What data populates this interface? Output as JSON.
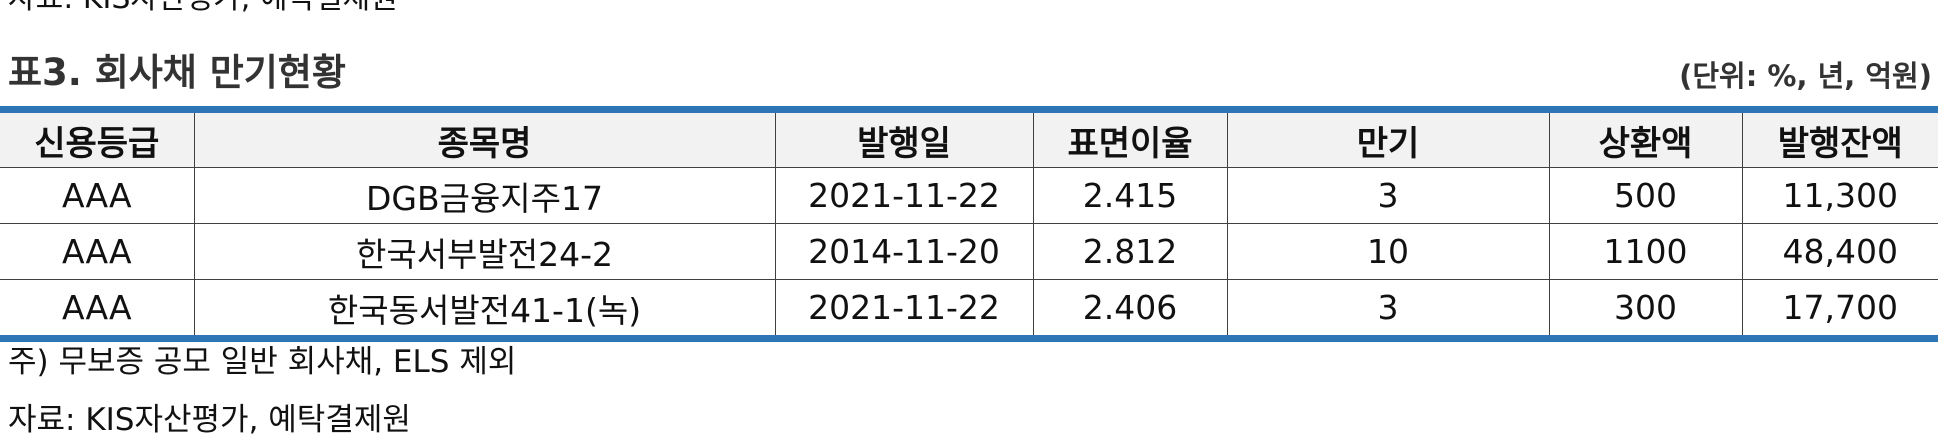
{
  "top_source_cut": "자료: KIS자산평가, 예탁결제원",
  "title": "표3. 회사채 만기현황",
  "unit": "(단위: %, 년, 억원)",
  "table": {
    "headers": [
      "신용등급",
      "종목명",
      "발행일",
      "표면이율",
      "만기",
      "상환액",
      "발행잔액"
    ],
    "rows": [
      [
        "AAA",
        "DGB금융지주17",
        "2021-11-22",
        "2.415",
        "3",
        "500",
        "11,300"
      ],
      [
        "AAA",
        "한국서부발전24-2",
        "2014-11-20",
        "2.812",
        "10",
        "1100",
        "48,400"
      ],
      [
        "AAA",
        "한국동서발전41-1(녹)",
        "2021-11-22",
        "2.406",
        "3",
        "300",
        "17,700"
      ]
    ]
  },
  "notes": {
    "footnote": "주) 무보증 공모 일반 회사채, ELS 제외",
    "source": "자료: KIS자산평가, 예탁결제원"
  },
  "colors": {
    "rule": "#2e75b6",
    "header_bg": "#f2f2f2",
    "title_text": "#333333"
  }
}
